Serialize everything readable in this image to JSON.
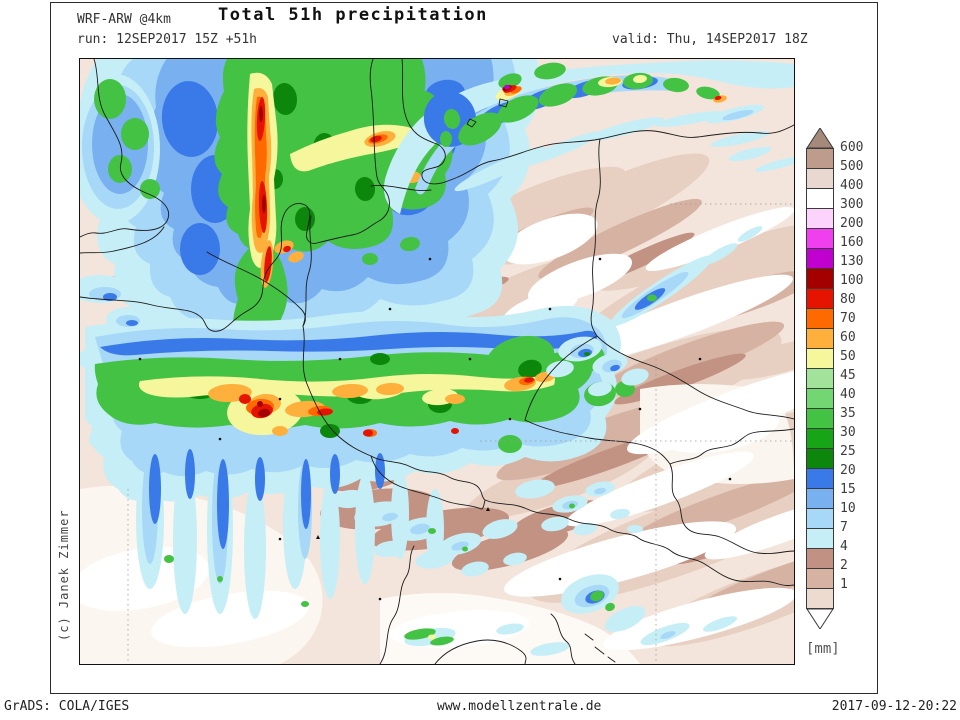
{
  "header": {
    "model": "WRF-ARW @4km",
    "title": "Total 51h precipitation",
    "run": "run: 12SEP2017 15Z +51h",
    "valid": "valid: Thu, 14SEP2017 18Z"
  },
  "map": {
    "copyright": "(c) Janek Zimmer",
    "region": "Central Europe"
  },
  "legend": {
    "unit_label": "[mm]",
    "above_color": "#a5897a",
    "below_color": "#ffffff",
    "labels": [
      "600",
      "500",
      "400",
      "300",
      "200",
      "160",
      "130",
      "100",
      "80",
      "70",
      "60",
      "50",
      "45",
      "40",
      "35",
      "30",
      "25",
      "20",
      "15",
      "10",
      "7",
      "4",
      "2",
      "1"
    ],
    "box_colors": [
      "#bd9c8c",
      "#e9d8d0",
      "#ffffff",
      "#fbd3fb",
      "#ef3fef",
      "#bf00cf",
      "#a50000",
      "#e41400",
      "#ff6a00",
      "#ffb03c",
      "#f6f69c",
      "#a2e39a",
      "#72d672",
      "#44c244",
      "#17a517",
      "#0c870c",
      "#3a7ae8",
      "#78b0f0",
      "#a8d8f8",
      "#c6eef6",
      "#c19283",
      "#d6b2a2",
      "#eddbd0"
    ]
  },
  "footer": {
    "left": "GrADS: COLA/IGES",
    "center": "www.modellzentrale.de",
    "right": "2017-09-12-20:22"
  }
}
